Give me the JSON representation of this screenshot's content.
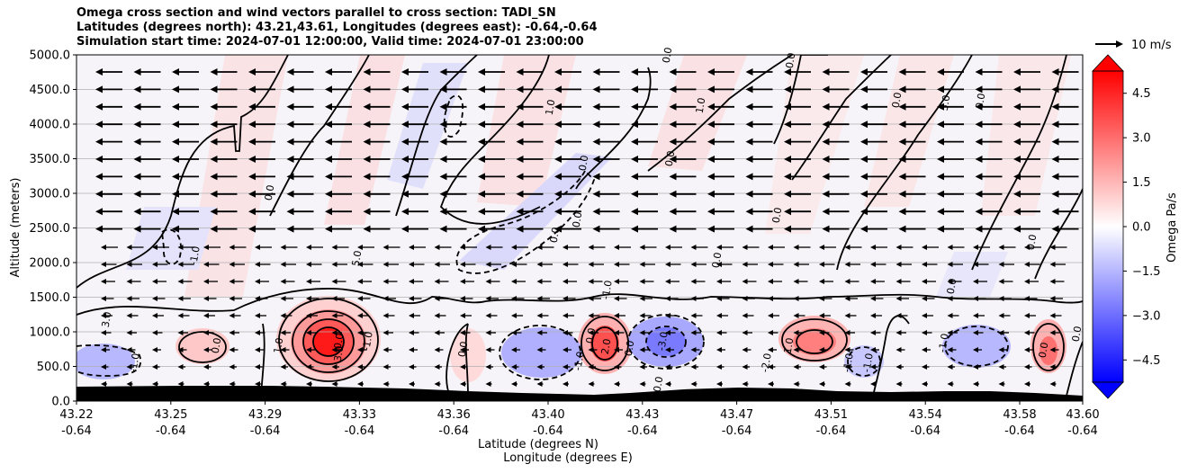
{
  "title_lines": [
    "Omega cross section and wind vectors parallel to cross section: TADI_SN",
    "Latitudes (degrees north): 43.21,43.61, Longitudes (degrees east): -0.64,-0.64",
    "Simulation start time: 2024-07-01 12:00:00, Valid time: 2024-07-01 23:00:00"
  ],
  "chart_data": {
    "type": "heatmap",
    "ylabel": "Altitude (meters)",
    "xlabel_line1": "Latitude (degrees N)",
    "xlabel_line2": "Longitude (degrees E)",
    "ylim": [
      0,
      5000
    ],
    "y_ticks": [
      "0.0",
      "500.0",
      "1000.0",
      "1500.0",
      "2000.0",
      "2500.0",
      "3000.0",
      "3500.0",
      "4000.0",
      "4500.0",
      "5000.0"
    ],
    "x_ticks_lat": [
      "43.22",
      "43.25",
      "43.29",
      "43.33",
      "43.36",
      "43.40",
      "43.43",
      "43.47",
      "43.51",
      "43.54",
      "43.58",
      "43.60"
    ],
    "x_ticks_lon": [
      "-0.64",
      "-0.64",
      "-0.64",
      "-0.64",
      "-0.64",
      "-0.64",
      "-0.64",
      "-0.64",
      "-0.64",
      "-0.64",
      "-0.64",
      "-0.64"
    ],
    "colorbar": {
      "label": "Omega Pa/s",
      "range": [
        -5.25,
        5.25
      ],
      "ticks": [
        "4.5",
        "3.0",
        "1.5",
        "0.0",
        "−1.5",
        "−3.0",
        "−4.5"
      ],
      "cmap": "bwr",
      "extend": "both"
    },
    "quiver_key": "10 m/s",
    "contour_labels": [
      "0.0",
      "-1.0",
      "1.0",
      "2.0",
      "3.0",
      "4.0",
      "5.0",
      "-2.0",
      "-3.0"
    ],
    "colors": {
      "positive": "#ff0000",
      "negative": "#0000ff",
      "terrain": "#000000"
    }
  }
}
